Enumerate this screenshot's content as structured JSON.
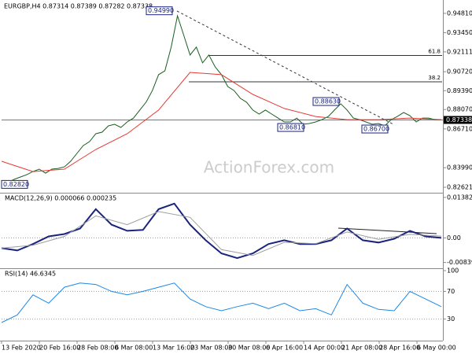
{
  "chart_data": [
    {
      "type": "line",
      "title": "EURGBP,H4  0.87314 0.87389 0.87282 0.87338",
      "watermark": "ActionForex.com",
      "ylim": [
        0.8229,
        0.9547
      ],
      "yticks": [
        {
          "value": 0.9481,
          "label": "0.94810"
        },
        {
          "value": 0.9345,
          "label": "0.93450"
        },
        {
          "value": 0.92111,
          "label": "0.92111"
        },
        {
          "value": 0.9072,
          "label": "0.90720"
        },
        {
          "value": 0.8939,
          "label": "0.89390"
        },
        {
          "value": 0.8807,
          "label": "0.88070"
        },
        {
          "value": 0.8671,
          "label": "0.86710"
        },
        {
          "value": 0.8399,
          "label": "0.83990"
        },
        {
          "value": 0.82621,
          "label": "0.82621"
        }
      ],
      "last_price": 0.87338,
      "levels": [
        {
          "value": 0.9186,
          "label": "61.8"
        },
        {
          "value": 0.9001,
          "label": "38.2"
        }
      ],
      "annotations": [
        {
          "value": 0.9499,
          "label": "0.94990"
        },
        {
          "value": 0.8863,
          "label": "0.88630"
        },
        {
          "value": 0.8681,
          "label": "0.86810"
        },
        {
          "value": 0.867,
          "label": "0.86700"
        },
        {
          "value": 0.8282,
          "label": "0.82820"
        }
      ],
      "series": [
        {
          "color": "#1b5e20",
          "values": [
            0.8306,
            0.8295,
            0.8317,
            0.8334,
            0.835,
            0.8372,
            0.8389,
            0.8361,
            0.8389,
            0.8394,
            0.8405,
            0.8444,
            0.8499,
            0.8554,
            0.8582,
            0.8637,
            0.8648,
            0.8692,
            0.8703,
            0.8681,
            0.872,
            0.8747,
            0.8803,
            0.8858,
            0.894,
            0.9051,
            0.9078,
            0.9244,
            0.9464,
            0.9327,
            0.9189,
            0.9244,
            0.9134,
            0.9189,
            0.9106,
            0.9051,
            0.8968,
            0.894,
            0.8885,
            0.8858,
            0.8803,
            0.8775,
            0.8803,
            0.8775,
            0.8747,
            0.872,
            0.872,
            0.8747,
            0.8703,
            0.8709,
            0.872,
            0.8736,
            0.8758,
            0.8803,
            0.8847,
            0.8803,
            0.8747,
            0.8736,
            0.872,
            0.8703,
            0.8709,
            0.8692,
            0.8736,
            0.8758,
            0.8786,
            0.8764,
            0.872,
            0.8747,
            0.8747,
            0.8736,
            0.8736
          ]
        },
        {
          "color": "#e53935",
          "values": [
            0.8444,
            0.8372,
            0.8389,
            0.8527,
            0.8637,
            0.8803,
            0.9067,
            0.9051,
            0.8913,
            0.8814,
            0.8758,
            0.8736,
            0.8736,
            0.8747,
            0.8736
          ]
        }
      ]
    },
    {
      "type": "line",
      "title": "MACD(12,26,9) 0.000066 0.000235",
      "ylim": [
        -0.0101,
        0.0146
      ],
      "yticks": [
        0.013821,
        {
          "value": 0,
          "label": "0.00"
        },
        -0.008397
      ],
      "series": [
        {
          "color": "#1a237e",
          "values": [
            -0.0035,
            -0.0043,
            -0.0021,
            0.0005,
            0.0013,
            0.0032,
            0.0098,
            0.0045,
            0.0024,
            0.0027,
            0.0098,
            0.0117,
            0.0045,
            -0.0008,
            -0.0053,
            -0.0069,
            -0.0053,
            -0.0021,
            -0.0008,
            -0.0021,
            -0.0021,
            -0.0008,
            0.0032,
            -0.0008,
            -0.0016,
            -0.0003,
            0.0024,
            0.0005,
            0
          ]
        },
        {
          "color": "#9e9e9e",
          "values": [
            -0.0035,
            -0.0025,
            0.0005,
            0.0075,
            0.0045,
            0.009,
            0.007,
            -0.004,
            -0.006,
            -0.0015,
            -0.002,
            0.002,
            -0.0005,
            0.0012,
            0.0006
          ]
        }
      ]
    },
    {
      "type": "line",
      "title": "RSI(14) 46.6345",
      "ylim": [
        0,
        100
      ],
      "yticks": [
        100,
        70,
        30
      ],
      "x_labels": [
        "13 Feb 2020",
        "20 Feb 16:00",
        "28 Feb 08:00",
        "6 Mar 08:00",
        "13 Mar 16:00",
        "23 Mar 08:00",
        "30 Mar 08:00",
        "6 Apr 16:00",
        "14 Apr 00:00",
        "21 Apr 08:00",
        "28 Apr 16:00",
        "6 May 00:00"
      ],
      "series": [
        {
          "color": "#1e88e5",
          "values": [
            25,
            36,
            65,
            53,
            76,
            82,
            80,
            70,
            65,
            70,
            76,
            82,
            59,
            48,
            42,
            48,
            53,
            45,
            53,
            42,
            45,
            36,
            80,
            53,
            44,
            42,
            70,
            59,
            48
          ]
        }
      ]
    }
  ]
}
